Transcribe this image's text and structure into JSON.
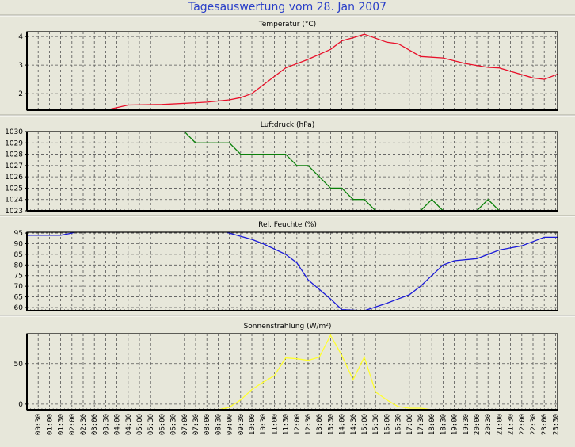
{
  "title": "Tagesauswertung vom 28. Jan 2007",
  "chart_data": [
    {
      "type": "line",
      "title": "Temperatur (°C)",
      "color": "#e8102a",
      "ylim": [
        1.42,
        4.17
      ],
      "yticks": [
        2,
        3,
        4
      ],
      "x": [
        3.5,
        4.5,
        6,
        8,
        9,
        9.5,
        10,
        11,
        11.5,
        12.5,
        13.5,
        14,
        14.5,
        15,
        16,
        16.5,
        17.5,
        18.5,
        19.5,
        20.5,
        21,
        21.5,
        22.5,
        23,
        23.65
      ],
      "values": [
        1.42,
        1.6,
        1.62,
        1.7,
        1.78,
        1.86,
        2.0,
        2.6,
        2.9,
        3.2,
        3.55,
        3.85,
        3.96,
        4.08,
        3.8,
        3.75,
        3.3,
        3.25,
        3.05,
        2.92,
        2.9,
        2.78,
        2.55,
        2.5,
        2.7
      ]
    },
    {
      "type": "line",
      "title": "Luftdruck (hPa)",
      "color": "#0a800a",
      "ylim": [
        1023,
        1030
      ],
      "yticks": [
        1023,
        1024,
        1025,
        1026,
        1027,
        1028,
        1029,
        1030
      ],
      "x": [
        6.9,
        7.0,
        7.5,
        9.0,
        9.5,
        11.5,
        12.0,
        12.5,
        13.0,
        13.5,
        14.0,
        14.5,
        15.0,
        15.5,
        17.5,
        18.0,
        18.5,
        20.0,
        20.5,
        21.0,
        23.65
      ],
      "values": [
        1030.5,
        1030,
        1029,
        1029,
        1028,
        1028,
        1027,
        1027,
        1026,
        1025,
        1025,
        1024,
        1024,
        1023,
        1023,
        1024,
        1023,
        1023,
        1024,
        1023,
        1023
      ]
    },
    {
      "type": "line",
      "title": "Rel. Feuchte (%)",
      "color": "#1a1ad8",
      "ylim": [
        58.5,
        95.4
      ],
      "yticks": [
        60,
        65,
        70,
        75,
        80,
        85,
        90,
        95
      ],
      "x": [
        0,
        1.5,
        2.0,
        2.3,
        8.7,
        9.0,
        10.0,
        10.5,
        11.5,
        12.0,
        12.5,
        13.5,
        14.0,
        15.0,
        16.0,
        16.5,
        17.0,
        17.5,
        18.0,
        18.5,
        19.0,
        20.0,
        21.0,
        22.0,
        22.5,
        23.0,
        23.65
      ],
      "values": [
        94,
        94,
        95,
        96,
        96,
        95,
        92,
        90,
        85,
        81,
        73,
        64,
        59,
        58.5,
        62,
        64,
        66,
        70,
        75,
        80,
        82,
        83,
        87,
        89,
        91,
        93,
        93
      ]
    },
    {
      "type": "line",
      "title": "Sonnenstrahlung (W/m²)",
      "color": "#ffff30",
      "ylim": [
        -7,
        87
      ],
      "yticks": [
        0,
        50
      ],
      "x": [
        8.5,
        9.0,
        9.5,
        10.0,
        10.5,
        11.0,
        11.5,
        12.0,
        12.5,
        13.0,
        13.5,
        14.0,
        14.5,
        15.0,
        15.5,
        16.0,
        16.5,
        17.0,
        17.5,
        18.0
      ],
      "values": [
        -7,
        -4,
        5,
        18,
        27,
        35,
        57,
        56,
        54,
        58,
        85,
        60,
        30,
        58,
        15,
        5,
        -3,
        -5,
        -5,
        -7
      ]
    }
  ],
  "x_labels": [
    "00:30",
    "01:00",
    "01:30",
    "02:00",
    "02:30",
    "03:00",
    "03:30",
    "04:00",
    "04:30",
    "05:00",
    "05:30",
    "06:00",
    "06:30",
    "07:00",
    "07:30",
    "08:00",
    "08:30",
    "09:00",
    "09:30",
    "10:00",
    "10:30",
    "11:00",
    "11:30",
    "12:00",
    "12:30",
    "13:00",
    "13:30",
    "14:00",
    "14:30",
    "15:00",
    "15:30",
    "16:00",
    "16:30",
    "17:00",
    "17:30",
    "18:00",
    "18:30",
    "19:00",
    "19:30",
    "20:00",
    "20:30",
    "21:00",
    "21:30",
    "22:00",
    "22:30",
    "23:00",
    "23:30"
  ]
}
